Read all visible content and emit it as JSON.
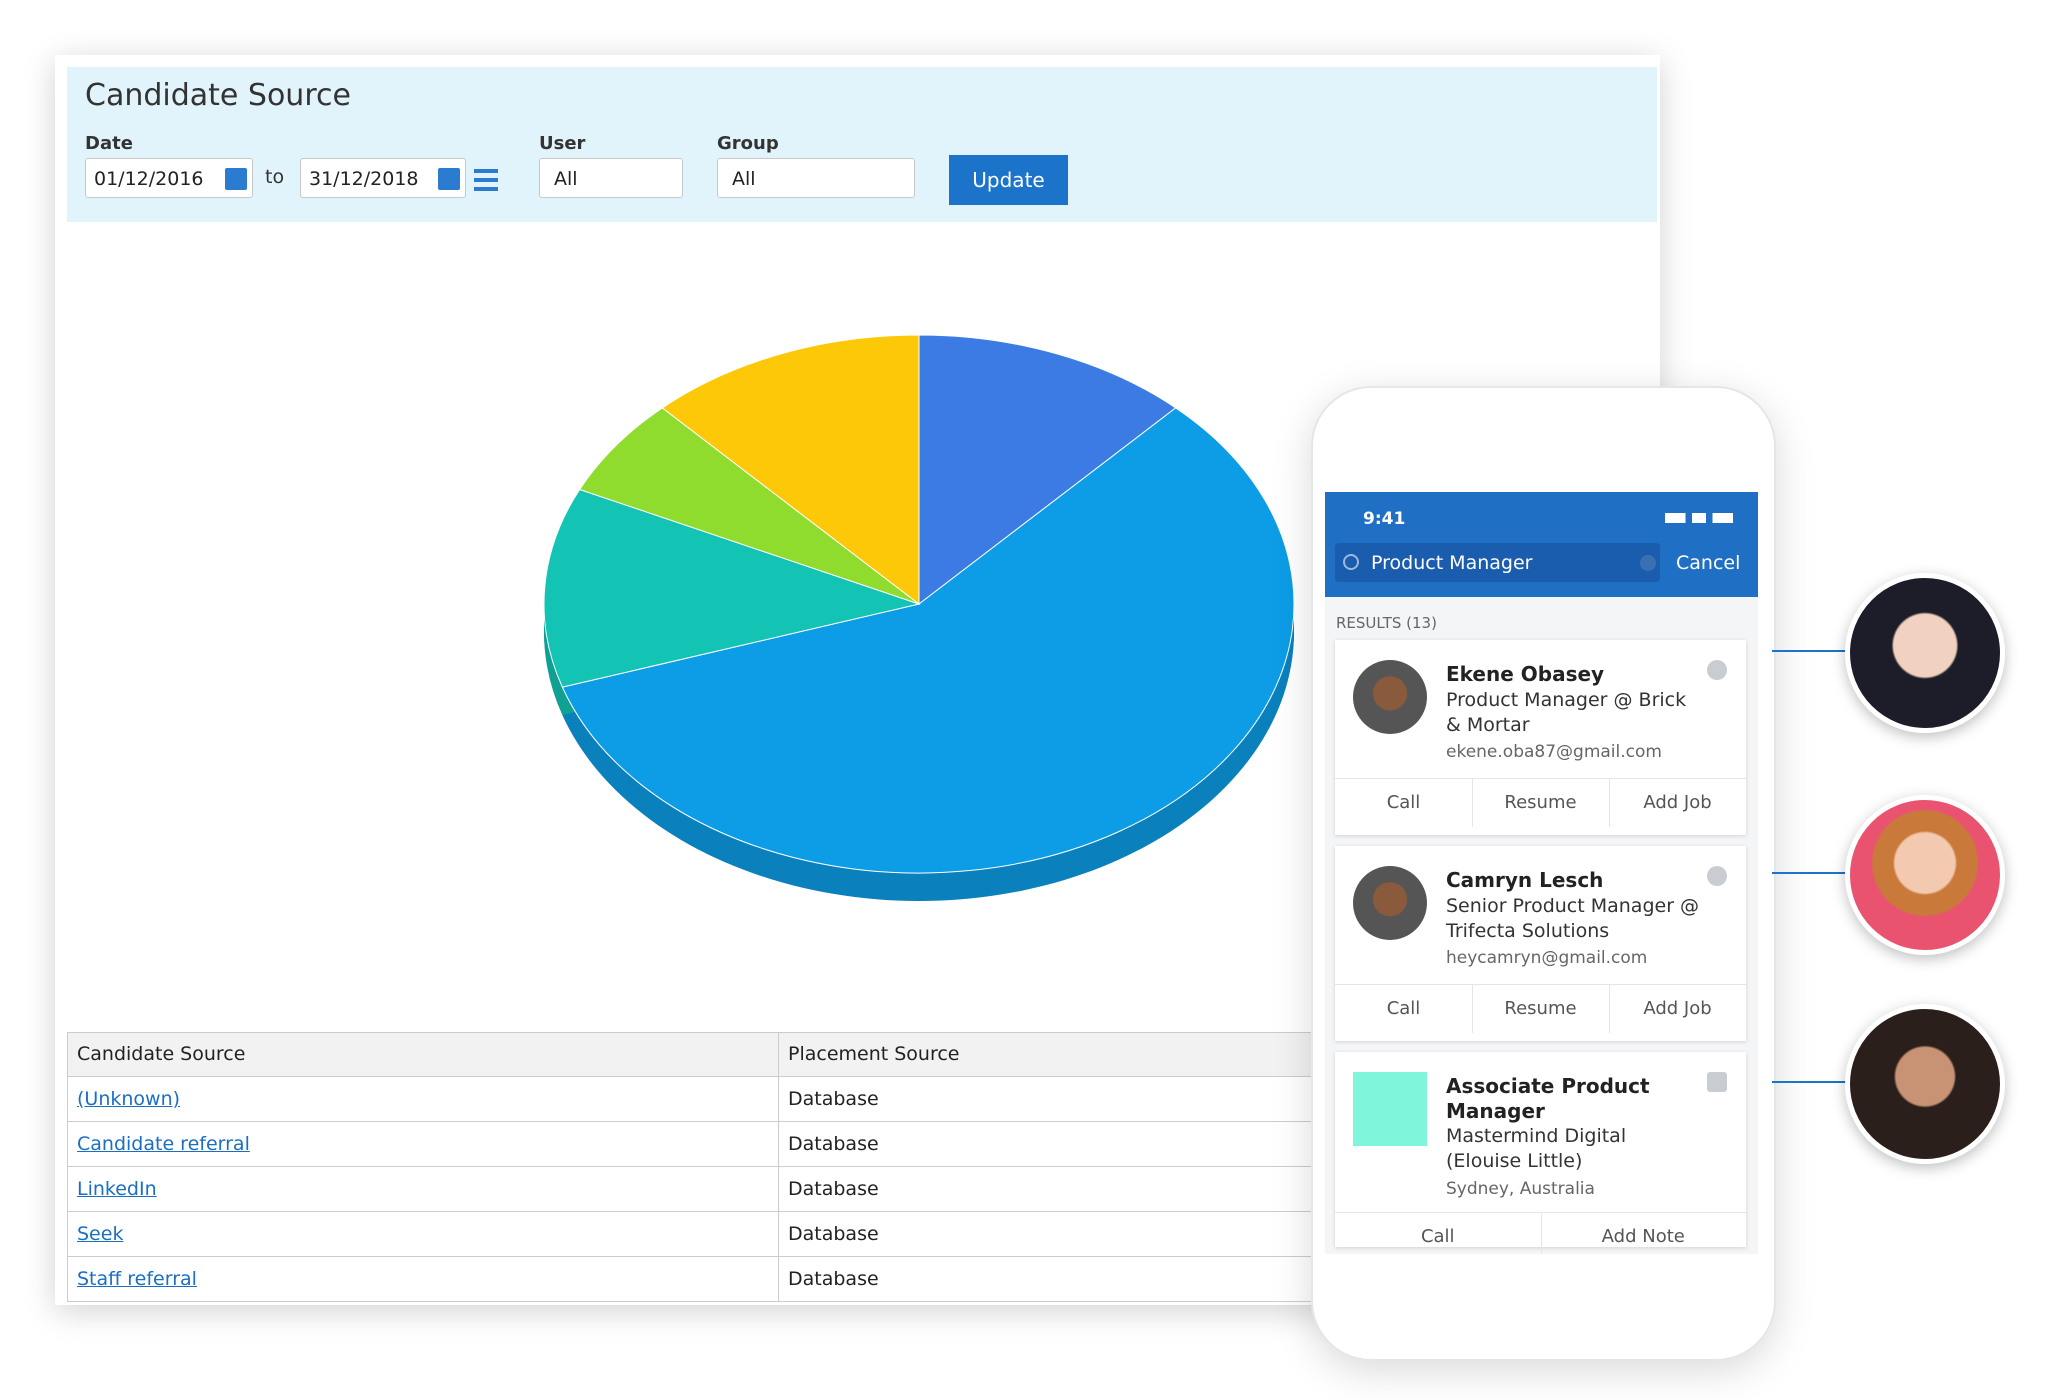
{
  "header": {
    "title": "Candidate Source"
  },
  "filters": {
    "date_label": "Date",
    "date_from": "01/12/2016",
    "to": "to",
    "date_to": "31/12/2018",
    "user_label": "User",
    "user_value": "All",
    "group_label": "Group",
    "group_value": "All",
    "update_button": "Update"
  },
  "chart_data": {
    "type": "pie",
    "values": [
      12,
      58,
      12,
      6,
      12
    ],
    "colors": [
      "#3d7be4",
      "#0c9de6",
      "#13c3b4",
      "#8fdc2f",
      "#fdc807"
    ]
  },
  "table": {
    "headers": [
      "Candidate Source",
      "Placement Source"
    ],
    "rows": [
      [
        "(Unknown)",
        "Database"
      ],
      [
        "Candidate referral",
        "Database"
      ],
      [
        "LinkedIn",
        "Database"
      ],
      [
        "Seek",
        "Database"
      ],
      [
        "Staff referral",
        "Database"
      ]
    ]
  },
  "phone": {
    "time": "9:41",
    "search": "Product Manager",
    "cancel": "Cancel",
    "results": "RESULTS (13)",
    "cards": [
      {
        "name": "Ekene Obasey",
        "title": "Product Manager @ Brick & Mortar",
        "detail": "ekene.oba87@gmail.com",
        "actions": [
          "Call",
          "Resume",
          "Add Job"
        ]
      },
      {
        "name": "Camryn Lesch",
        "title": "Senior Product Manager @ Trifecta Solutions",
        "detail": "heycamryn@gmail.com",
        "actions": [
          "Call",
          "Resume",
          "Add Job"
        ]
      },
      {
        "name": "Associate Product Manager",
        "title": "Mastermind Digital (Elouise Little)",
        "detail": "Sydney, Australia",
        "actions": [
          "Call",
          "Add Note"
        ]
      }
    ]
  }
}
